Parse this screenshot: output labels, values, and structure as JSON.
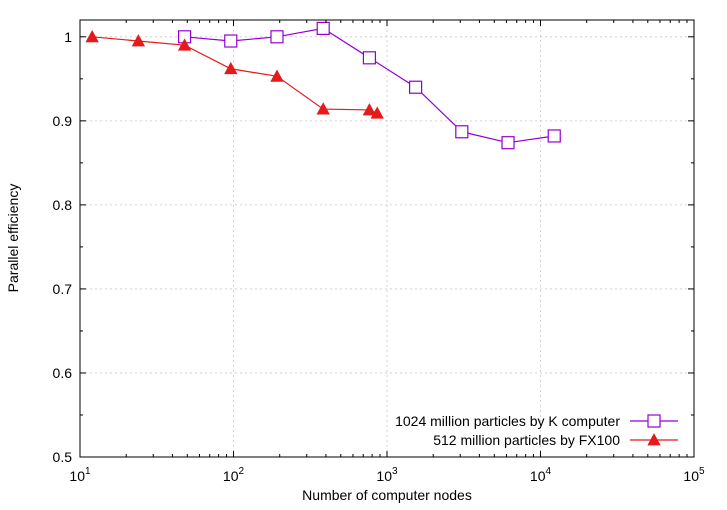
{
  "chart_data": {
    "type": "line",
    "title": "",
    "xlabel": "Number of computer nodes",
    "ylabel": "Parallel efficiency",
    "x_scale": "log",
    "xlim": [
      10,
      100000
    ],
    "ylim": [
      0.5,
      1.02
    ],
    "x_ticks": [
      {
        "value": 10,
        "base": "10",
        "exp": "1"
      },
      {
        "value": 100,
        "base": "10",
        "exp": "2"
      },
      {
        "value": 1000,
        "base": "10",
        "exp": "3"
      },
      {
        "value": 10000,
        "base": "10",
        "exp": "4"
      },
      {
        "value": 100000,
        "base": "10",
        "exp": "5"
      }
    ],
    "y_ticks": [
      {
        "value": 0.5,
        "label": "0.5"
      },
      {
        "value": 0.6,
        "label": "0.6"
      },
      {
        "value": 0.7,
        "label": "0.7"
      },
      {
        "value": 0.8,
        "label": "0.8"
      },
      {
        "value": 0.9,
        "label": "0.9"
      },
      {
        "value": 1.0,
        "label": "1"
      }
    ],
    "grid": true,
    "legend_position": "bottom-right",
    "series": [
      {
        "name": "1024 million particles by K computer",
        "color": "#9400d3",
        "marker": "open-square",
        "x": [
          48,
          96,
          192,
          384,
          768,
          1536,
          3072,
          6144,
          12288
        ],
        "y": [
          1.0,
          0.995,
          1.0,
          1.01,
          0.975,
          0.94,
          0.887,
          0.874,
          0.882
        ]
      },
      {
        "name": "512 million particles by FX100",
        "color": "#e41a1c",
        "marker": "filled-triangle",
        "x": [
          12,
          24,
          48,
          96,
          192,
          384,
          768,
          864
        ],
        "y": [
          1.0,
          0.995,
          0.99,
          0.962,
          0.953,
          0.914,
          0.913,
          0.909
        ]
      }
    ]
  }
}
